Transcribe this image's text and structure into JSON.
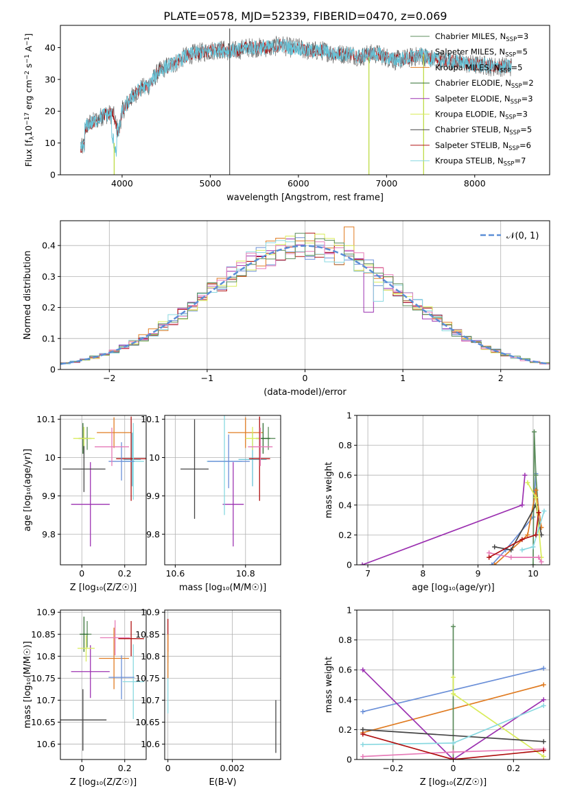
{
  "figure": {
    "title": "PLATE=0578, MJD=52339, FIBERID=0470, z=0.069"
  },
  "palette": [
    "#5b8c5b",
    "#66c2d6",
    "#e07b21",
    "#2f6b2f",
    "#9b30b0",
    "#d9ec5a",
    "#444444",
    "#b01010",
    "#88d8e0",
    "#6a8fd8",
    "#e67ab7"
  ],
  "legend": {
    "models": [
      {
        "imf": "Chabrier",
        "lib": "MILES",
        "nssp": "3",
        "color": "#5b8c5b"
      },
      {
        "imf": "Salpeter",
        "lib": "MILES",
        "nssp": "5",
        "color": "#66c2d6"
      },
      {
        "imf": "Kroupa",
        "lib": "MILES",
        "nssp": "5",
        "color": "#e07b21"
      },
      {
        "imf": "Chabrier",
        "lib": "ELODIE",
        "nssp": "2",
        "color": "#2f6b2f"
      },
      {
        "imf": "Salpeter",
        "lib": "ELODIE",
        "nssp": "3",
        "color": "#9b30b0"
      },
      {
        "imf": "Kroupa",
        "lib": "ELODIE",
        "nssp": "3",
        "color": "#d9ec5a"
      },
      {
        "imf": "Chabrier",
        "lib": "STELIB",
        "nssp": "5",
        "color": "#444444"
      },
      {
        "imf": "Salpeter",
        "lib": "STELIB",
        "nssp": "6",
        "color": "#b01010"
      },
      {
        "imf": "Kroupa",
        "lib": "STELIB",
        "nssp": "7",
        "color": "#88d8e0"
      }
    ],
    "nssp_prefix": "N",
    "nssp_sub": "SSP",
    "gaussian_label": "𝒩(0, 1)"
  },
  "chart_data": [
    {
      "id": "spectrum",
      "type": "line",
      "xlabel": "wavelength [Angstrom, rest frame]",
      "ylabel_parts": {
        "a": "Flux [f",
        "sub": "λ",
        "b": "10",
        "sup1": "−17",
        "c": " erg cm",
        "sup2": "−2",
        "d": " s",
        "sup3": "−1",
        "e": " A",
        "sup4": "−1",
        "f": "]"
      },
      "xlim": [
        3300,
        8850
      ],
      "ylim": [
        0,
        47
      ],
      "xticks": [
        4000,
        5000,
        6000,
        7000,
        8000
      ],
      "yticks": [
        0,
        10,
        20,
        30,
        40
      ],
      "continuum": [
        [
          3530,
          13
        ],
        [
          3620,
          16
        ],
        [
          3700,
          17
        ],
        [
          3800,
          19
        ],
        [
          3900,
          19
        ],
        [
          3960,
          13
        ],
        [
          4000,
          20
        ],
        [
          4100,
          24
        ],
        [
          4200,
          27
        ],
        [
          4300,
          28
        ],
        [
          4400,
          32
        ],
        [
          4500,
          34
        ],
        [
          4600,
          35
        ],
        [
          4700,
          37
        ],
        [
          4800,
          38
        ],
        [
          4900,
          38.5
        ],
        [
          5000,
          39
        ],
        [
          5100,
          39.5
        ],
        [
          5200,
          39
        ],
        [
          5300,
          39
        ],
        [
          5400,
          40
        ],
        [
          5500,
          40
        ],
        [
          5600,
          40
        ],
        [
          5700,
          40
        ],
        [
          5800,
          41
        ],
        [
          5900,
          40
        ],
        [
          6000,
          40
        ],
        [
          6100,
          39
        ],
        [
          6200,
          39
        ],
        [
          6300,
          39
        ],
        [
          6400,
          38
        ],
        [
          6500,
          38
        ],
        [
          6600,
          38
        ],
        [
          6700,
          37
        ],
        [
          6800,
          38
        ],
        [
          6900,
          38
        ],
        [
          7000,
          37
        ],
        [
          7100,
          36
        ],
        [
          7200,
          36.5
        ],
        [
          7300,
          37
        ],
        [
          7400,
          37.5
        ],
        [
          7500,
          36.5
        ],
        [
          7600,
          36
        ],
        [
          7700,
          36
        ],
        [
          7800,
          35.5
        ],
        [
          7900,
          35
        ],
        [
          8000,
          34.5
        ],
        [
          8100,
          34.5
        ],
        [
          8200,
          34
        ],
        [
          8300,
          34
        ],
        [
          8420,
          34
        ]
      ],
      "spikes": [
        {
          "x": 5220,
          "y0": 0,
          "y1": 46,
          "color": "#555555"
        },
        {
          "x": 3910,
          "y0": 0,
          "y1": 10,
          "color": "#b8d836"
        },
        {
          "x": 6800,
          "y0": 0,
          "y1": 37,
          "color": "#b8d836"
        },
        {
          "x": 7420,
          "y0": 0,
          "y1": 38,
          "color": "#b8d836"
        }
      ]
    },
    {
      "id": "residuals",
      "type": "histogram",
      "xlabel": "(data-model)/error",
      "ylabel": "Normed distribution",
      "xlim": [
        -2.5,
        2.5
      ],
      "ylim": [
        0,
        0.48
      ],
      "xticks": [
        -2,
        -1,
        0,
        1,
        2
      ],
      "yticks": [
        0.0,
        0.1,
        0.2,
        0.3,
        0.4
      ],
      "bin_width": 0.1,
      "gaussian": {
        "mean": 0,
        "sigma": 1,
        "color": "#5b8ed6"
      }
    },
    {
      "id": "age-vs-z",
      "type": "errorbar",
      "xlabel": "Z [log₁₀(Z/Z☉)]",
      "ylabel": "age  [log₁₀(age/yr)]",
      "xlim": [
        -0.1,
        0.3
      ],
      "ylim": [
        9.72,
        10.11
      ],
      "xticks": [
        0.0,
        0.2
      ],
      "yticks": [
        9.8,
        9.9,
        10.0,
        10.1
      ],
      "points": [
        {
          "x": 0.025,
          "y": 10.05,
          "xerr": 0.02,
          "yerr": 0.03,
          "color": "#5b8c5b"
        },
        {
          "x": 0.235,
          "y": 9.995,
          "xerr": 0.04,
          "yerr": 0.07,
          "color": "#66c2d6"
        },
        {
          "x": 0.15,
          "y": 10.065,
          "xerr": 0.08,
          "yerr": 0.04,
          "color": "#e07b21"
        },
        {
          "x": 0.005,
          "y": 10.05,
          "xerr": 0.02,
          "yerr": 0.04,
          "color": "#2f6b2f"
        },
        {
          "x": 0.04,
          "y": 9.878,
          "xerr": 0.09,
          "yerr": 0.11,
          "color": "#9b30b0"
        },
        {
          "x": 0.01,
          "y": 10.05,
          "xerr": 0.05,
          "yerr": 0.03,
          "color": "#d9ec5a"
        },
        {
          "x": 0.01,
          "y": 9.97,
          "xerr": 0.1,
          "yerr": 0.06,
          "color": "#444444"
        },
        {
          "x": 0.23,
          "y": 9.997,
          "xerr": 0.07,
          "yerr": 0.11,
          "color": "#b01010"
        },
        {
          "x": 0.24,
          "y": 9.99,
          "xerr": 0.05,
          "yerr": 0.1,
          "color": "#88d8e0"
        },
        {
          "x": 0.185,
          "y": 9.99,
          "xerr": 0.06,
          "yerr": 0.05,
          "color": "#6a8fd8"
        },
        {
          "x": 0.14,
          "y": 10.028,
          "xerr": 0.08,
          "yerr": 0.05,
          "color": "#e67ab7"
        }
      ]
    },
    {
      "id": "age-vs-mass",
      "type": "errorbar",
      "xlabel": "mass [log₁₀(M/M☉)]",
      "ylabel": "",
      "xlim": [
        10.57,
        10.9
      ],
      "ylim": [
        9.72,
        10.11
      ],
      "xticks": [
        10.6,
        10.8
      ],
      "yticks": [
        9.8,
        9.9,
        10.0,
        10.1
      ],
      "points": [
        {
          "x": 10.865,
          "y": 10.05,
          "xerr": 0.02,
          "yerr": 0.03,
          "color": "#5b8c5b"
        },
        {
          "x": 10.82,
          "y": 9.995,
          "xerr": 0.04,
          "yerr": 0.07,
          "color": "#66c2d6"
        },
        {
          "x": 10.8,
          "y": 10.065,
          "xerr": 0.05,
          "yerr": 0.04,
          "color": "#e07b21"
        },
        {
          "x": 10.85,
          "y": 10.05,
          "xerr": 0.02,
          "yerr": 0.04,
          "color": "#2f6b2f"
        },
        {
          "x": 10.765,
          "y": 9.878,
          "xerr": 0.03,
          "yerr": 0.11,
          "color": "#9b30b0"
        },
        {
          "x": 10.82,
          "y": 10.05,
          "xerr": 0.02,
          "yerr": 0.03,
          "color": "#d9ec5a"
        },
        {
          "x": 10.655,
          "y": 9.97,
          "xerr": 0.04,
          "yerr": 0.13,
          "color": "#444444"
        },
        {
          "x": 10.84,
          "y": 9.997,
          "xerr": 0.03,
          "yerr": 0.11,
          "color": "#b01010"
        },
        {
          "x": 10.74,
          "y": 9.99,
          "xerr": 0.05,
          "yerr": 0.14,
          "color": "#88d8e0"
        },
        {
          "x": 10.752,
          "y": 9.99,
          "xerr": 0.06,
          "yerr": 0.07,
          "color": "#6a8fd8"
        },
        {
          "x": 10.842,
          "y": 10.028,
          "xerr": 0.035,
          "yerr": 0.05,
          "color": "#e67ab7"
        }
      ]
    },
    {
      "id": "weight-vs-age",
      "type": "line",
      "xlabel": "age  [log₁₀(age/yr)]",
      "ylabel": "mass weight",
      "xlim": [
        6.8,
        10.3
      ],
      "ylim": [
        0,
        1.0
      ],
      "xticks": [
        7,
        8,
        9,
        10
      ],
      "yticks": [
        0.0,
        0.2,
        0.4,
        0.6,
        0.8,
        1.0
      ],
      "series": [
        {
          "color": "#9b30b0",
          "points": [
            [
              6.9,
              0.0
            ],
            [
              9.8,
              0.4
            ],
            [
              9.85,
              0.6
            ]
          ]
        },
        {
          "color": "#6a8fd8",
          "points": [
            [
              9.25,
              0.0
            ],
            [
              9.5,
              0.1
            ],
            [
              10.0,
              0.32
            ],
            [
              10.05,
              0.61
            ]
          ]
        },
        {
          "color": "#5b8c5b",
          "points": [
            [
              10.0,
              0.0
            ],
            [
              10.02,
              0.89
            ],
            [
              10.05,
              0.6
            ],
            [
              10.1,
              0.35
            ]
          ]
        },
        {
          "color": "#e07b21",
          "points": [
            [
              9.3,
              0.0
            ],
            [
              9.9,
              0.2
            ],
            [
              10.05,
              0.5
            ],
            [
              10.15,
              0.25
            ]
          ]
        },
        {
          "color": "#444444",
          "points": [
            [
              9.3,
              0.12
            ],
            [
              9.6,
              0.1
            ],
            [
              10.05,
              0.4
            ],
            [
              10.15,
              0.2
            ]
          ]
        },
        {
          "color": "#d9ec5a",
          "points": [
            [
              9.9,
              0.55
            ],
            [
              10.05,
              0.45
            ],
            [
              10.15,
              0.05
            ]
          ]
        },
        {
          "color": "#88d8e0",
          "points": [
            [
              9.8,
              0.1
            ],
            [
              10.0,
              0.12
            ],
            [
              10.2,
              0.36
            ]
          ]
        },
        {
          "color": "#e67ab7",
          "points": [
            [
              9.2,
              0.08
            ],
            [
              9.6,
              0.05
            ],
            [
              10.1,
              0.05
            ],
            [
              10.15,
              0.02
            ]
          ]
        },
        {
          "color": "#b01010",
          "points": [
            [
              9.2,
              0.05
            ],
            [
              9.8,
              0.17
            ],
            [
              10.05,
              0.2
            ],
            [
              10.1,
              0.35
            ]
          ]
        }
      ]
    },
    {
      "id": "mass-vs-z",
      "type": "errorbar",
      "xlabel": "Z [log₁₀(Z/Z☉)]",
      "ylabel": "mass [log₁₀(M/M☉)]",
      "xlim": [
        -0.1,
        0.3
      ],
      "ylim": [
        10.565,
        10.905
      ],
      "xticks": [
        0.0,
        0.2
      ],
      "yticks": [
        10.6,
        10.65,
        10.7,
        10.75,
        10.8,
        10.85,
        10.9
      ],
      "points": [
        {
          "x": 0.025,
          "y": 10.85,
          "xerr": 0.02,
          "yerr": 0.03,
          "color": "#5b8c5b"
        },
        {
          "x": 0.24,
          "y": 10.742,
          "xerr": 0.05,
          "yerr": 0.085,
          "color": "#88d8e0"
        },
        {
          "x": 0.15,
          "y": 10.795,
          "xerr": 0.07,
          "yerr": 0.07,
          "color": "#e07b21"
        },
        {
          "x": 0.01,
          "y": 10.85,
          "xerr": 0.02,
          "yerr": 0.04,
          "color": "#2f6b2f"
        },
        {
          "x": 0.04,
          "y": 10.765,
          "xerr": 0.09,
          "yerr": 0.06,
          "color": "#9b30b0"
        },
        {
          "x": 0.02,
          "y": 10.818,
          "xerr": 0.04,
          "yerr": 0.03,
          "color": "#d9ec5a"
        },
        {
          "x": 0.005,
          "y": 10.655,
          "xerr": 0.11,
          "yerr": 0.07,
          "color": "#444444"
        },
        {
          "x": 0.23,
          "y": 10.84,
          "xerr": 0.06,
          "yerr": 0.04,
          "color": "#b01010"
        },
        {
          "x": 0.185,
          "y": 10.752,
          "xerr": 0.06,
          "yerr": 0.05,
          "color": "#6a8fd8"
        },
        {
          "x": 0.155,
          "y": 10.842,
          "xerr": 0.07,
          "yerr": 0.04,
          "color": "#e67ab7"
        }
      ]
    },
    {
      "id": "mass-vs-ebv",
      "type": "errorbar",
      "xlabel": "E(B-V)",
      "ylabel": "",
      "xlim": [
        -0.0001,
        0.0035
      ],
      "ylim": [
        10.565,
        10.905
      ],
      "xticks": [
        0.0,
        0.002
      ],
      "yticks": [
        10.6,
        10.65,
        10.7,
        10.75,
        10.8,
        10.85,
        10.9
      ],
      "points": [
        {
          "x": 0.0,
          "y": 10.835,
          "xerr": 0,
          "yerr": 0.05,
          "color": "#b01010"
        },
        {
          "x": 0.0,
          "y": 10.74,
          "xerr": 0,
          "yerr": 0.07,
          "color": "#88d8e0"
        },
        {
          "x": 0.0,
          "y": 10.8,
          "xerr": 0,
          "yerr": 0.05,
          "color": "#e07b21"
        },
        {
          "x": 0.00335,
          "y": 10.64,
          "xerr": 0,
          "yerr": 0.06,
          "color": "#444444"
        }
      ]
    },
    {
      "id": "weight-vs-z",
      "type": "line",
      "xlabel": "Z [log₁₀(Z/Z☉)]",
      "ylabel": "mass weight",
      "xlim": [
        -0.32,
        0.32
      ],
      "ylim": [
        0,
        1.0
      ],
      "xticks": [
        -0.2,
        0.0,
        0.2
      ],
      "yticks": [
        0.0,
        0.2,
        0.4,
        0.6,
        0.8,
        1.0
      ],
      "series": [
        {
          "color": "#6a8fd8",
          "points": [
            [
              -0.3,
              0.32
            ],
            [
              0.3,
              0.61
            ]
          ]
        },
        {
          "color": "#e07b21",
          "points": [
            [
              -0.3,
              0.18
            ],
            [
              0.3,
              0.5
            ]
          ]
        },
        {
          "color": "#9b30b0",
          "points": [
            [
              -0.3,
              0.6
            ],
            [
              0.0,
              0.0
            ],
            [
              0.3,
              0.4
            ]
          ]
        },
        {
          "color": "#5b8c5b",
          "points": [
            [
              0.0,
              0.89
            ],
            [
              0.0,
              0.0
            ]
          ]
        },
        {
          "color": "#d9ec5a",
          "points": [
            [
              0.0,
              0.55
            ],
            [
              0.0,
              0.44
            ],
            [
              0.3,
              0.02
            ]
          ]
        },
        {
          "color": "#444444",
          "points": [
            [
              -0.3,
              0.2
            ],
            [
              0.3,
              0.12
            ]
          ]
        },
        {
          "color": "#88d8e0",
          "points": [
            [
              -0.3,
              0.1
            ],
            [
              0.0,
              0.11
            ],
            [
              0.3,
              0.36
            ]
          ]
        },
        {
          "color": "#e67ab7",
          "points": [
            [
              -0.3,
              0.02
            ],
            [
              0.0,
              0.05
            ],
            [
              0.3,
              0.07
            ]
          ]
        },
        {
          "color": "#b01010",
          "points": [
            [
              -0.3,
              0.17
            ],
            [
              0.0,
              0.0
            ],
            [
              0.3,
              0.06
            ]
          ]
        }
      ]
    }
  ]
}
